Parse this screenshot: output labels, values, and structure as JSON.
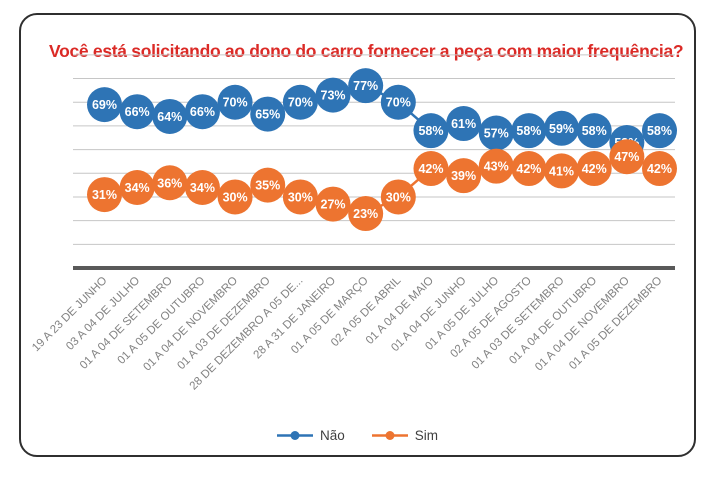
{
  "chart": {
    "title": "Você está solicitando ao dono do carro fornecer a peça com maior frequência?"
  },
  "chart_data": {
    "type": "line",
    "title": "Você está solicitando ao dono do carro fornecer a peça com maior frequência?",
    "categories": [
      "19 A 23 DE JUNHO",
      "03 A 04 DE JULHO",
      "01 A 04 DE SETEMBRO",
      "01 A 05 DE OUTUBRO",
      "01 A 04 DE NOVEMBRO",
      "01 A 03 DE DEZEMBRO",
      "28 DE DEZEMBRO A 05 DE...",
      "28 A 31 DE JANEIRO",
      "01 A 05 DE MARÇO",
      "02 A 05 DE ABRIL",
      "01 A 04 DE MAIO",
      "01 A 04 DE JUNHO",
      "01 A 05 DE JULHO",
      "02 A 05 DE AGOSTO",
      "01 A 03 DE SETEMBRO",
      "01 A 04 DE OUTUBRO",
      "01 A 04 DE NOVEMBRO",
      "01 A 05 DE DEZEMBRO"
    ],
    "series": [
      {
        "name": "Não",
        "color": "#2E74B5",
        "values": [
          69,
          66,
          64,
          66,
          70,
          65,
          70,
          73,
          77,
          70,
          58,
          61,
          57,
          58,
          59,
          58,
          53,
          58
        ]
      },
      {
        "name": "Sim",
        "color": "#ED7430",
        "values": [
          31,
          34,
          36,
          34,
          30,
          35,
          30,
          27,
          23,
          30,
          42,
          39,
          43,
          42,
          41,
          42,
          47,
          42
        ]
      }
    ],
    "data_label_format": "percent",
    "ylim": [
      0,
      90
    ],
    "gridline_step": 10,
    "grid": "horizontal",
    "legend_position": "bottom",
    "xlabel": "",
    "ylabel": ""
  },
  "colors": {
    "title": "#DB2A26",
    "gridline": "#C6C6C6",
    "axis_line": "#595959",
    "tick_label": "#828282",
    "legend_text": "#3F3F3F",
    "frame_border": "#2F2F2F",
    "background": "#FFFFFF",
    "marker_text": "#FFFFFF"
  }
}
